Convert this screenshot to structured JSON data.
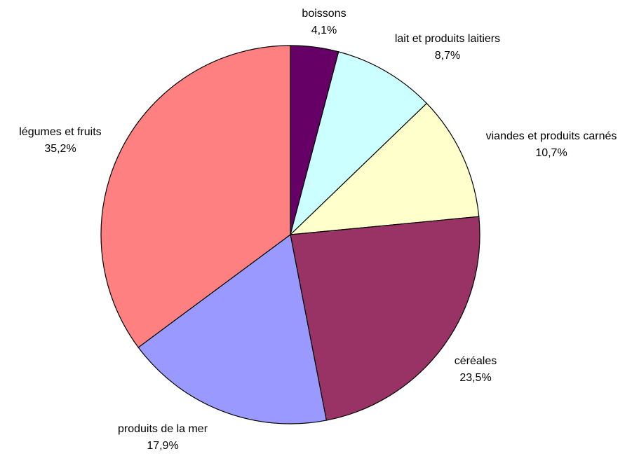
{
  "chart_data": {
    "type": "pie",
    "title": "",
    "start": "12 o'clock",
    "direction": "clockwise",
    "slices": [
      {
        "label": "boissons",
        "value": 4.1,
        "display": "4,1%",
        "color": "#660066"
      },
      {
        "label": "lait et produits laitiers",
        "value": 8.7,
        "display": "8,7%",
        "color": "#ccffff"
      },
      {
        "label": "viandes et produits carnés",
        "value": 10.7,
        "display": "10,7%",
        "color": "#ffffcc"
      },
      {
        "label": "céréales",
        "value": 23.5,
        "display": "23,5%",
        "color": "#993366"
      },
      {
        "label": "produits de la mer",
        "value": 17.9,
        "display": "17,9%",
        "color": "#9999ff"
      },
      {
        "label": "légumes et fruits",
        "value": 35.2,
        "display": "35,2%",
        "color": "#ff8080"
      }
    ]
  }
}
